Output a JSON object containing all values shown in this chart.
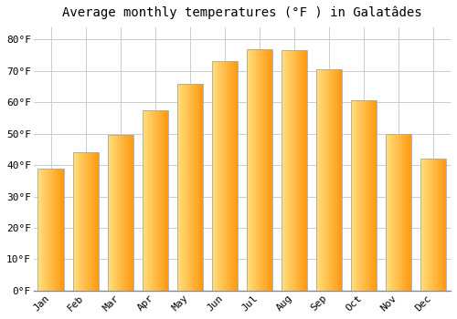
{
  "title": "Average monthly temperatures (°F ) in Galatâdes",
  "months": [
    "Jan",
    "Feb",
    "Mar",
    "Apr",
    "May",
    "Jun",
    "Jul",
    "Aug",
    "Sep",
    "Oct",
    "Nov",
    "Dec"
  ],
  "values": [
    39,
    44,
    49.5,
    57.5,
    66,
    73,
    77,
    76.5,
    70.5,
    60.5,
    50,
    42
  ],
  "bar_color_left": "#FFE088",
  "bar_color_right": "#FFA020",
  "bar_border_color": "#AAAAAA",
  "yticks": [
    0,
    10,
    20,
    30,
    40,
    50,
    60,
    70,
    80
  ],
  "ytick_labels": [
    "0°F",
    "10°F",
    "20°F",
    "30°F",
    "40°F",
    "50°F",
    "60°F",
    "70°F",
    "80°F"
  ],
  "ylim": [
    0,
    84
  ],
  "background_color": "#ffffff",
  "grid_color": "#cccccc",
  "title_fontsize": 10,
  "tick_fontsize": 8,
  "bar_width": 0.75
}
